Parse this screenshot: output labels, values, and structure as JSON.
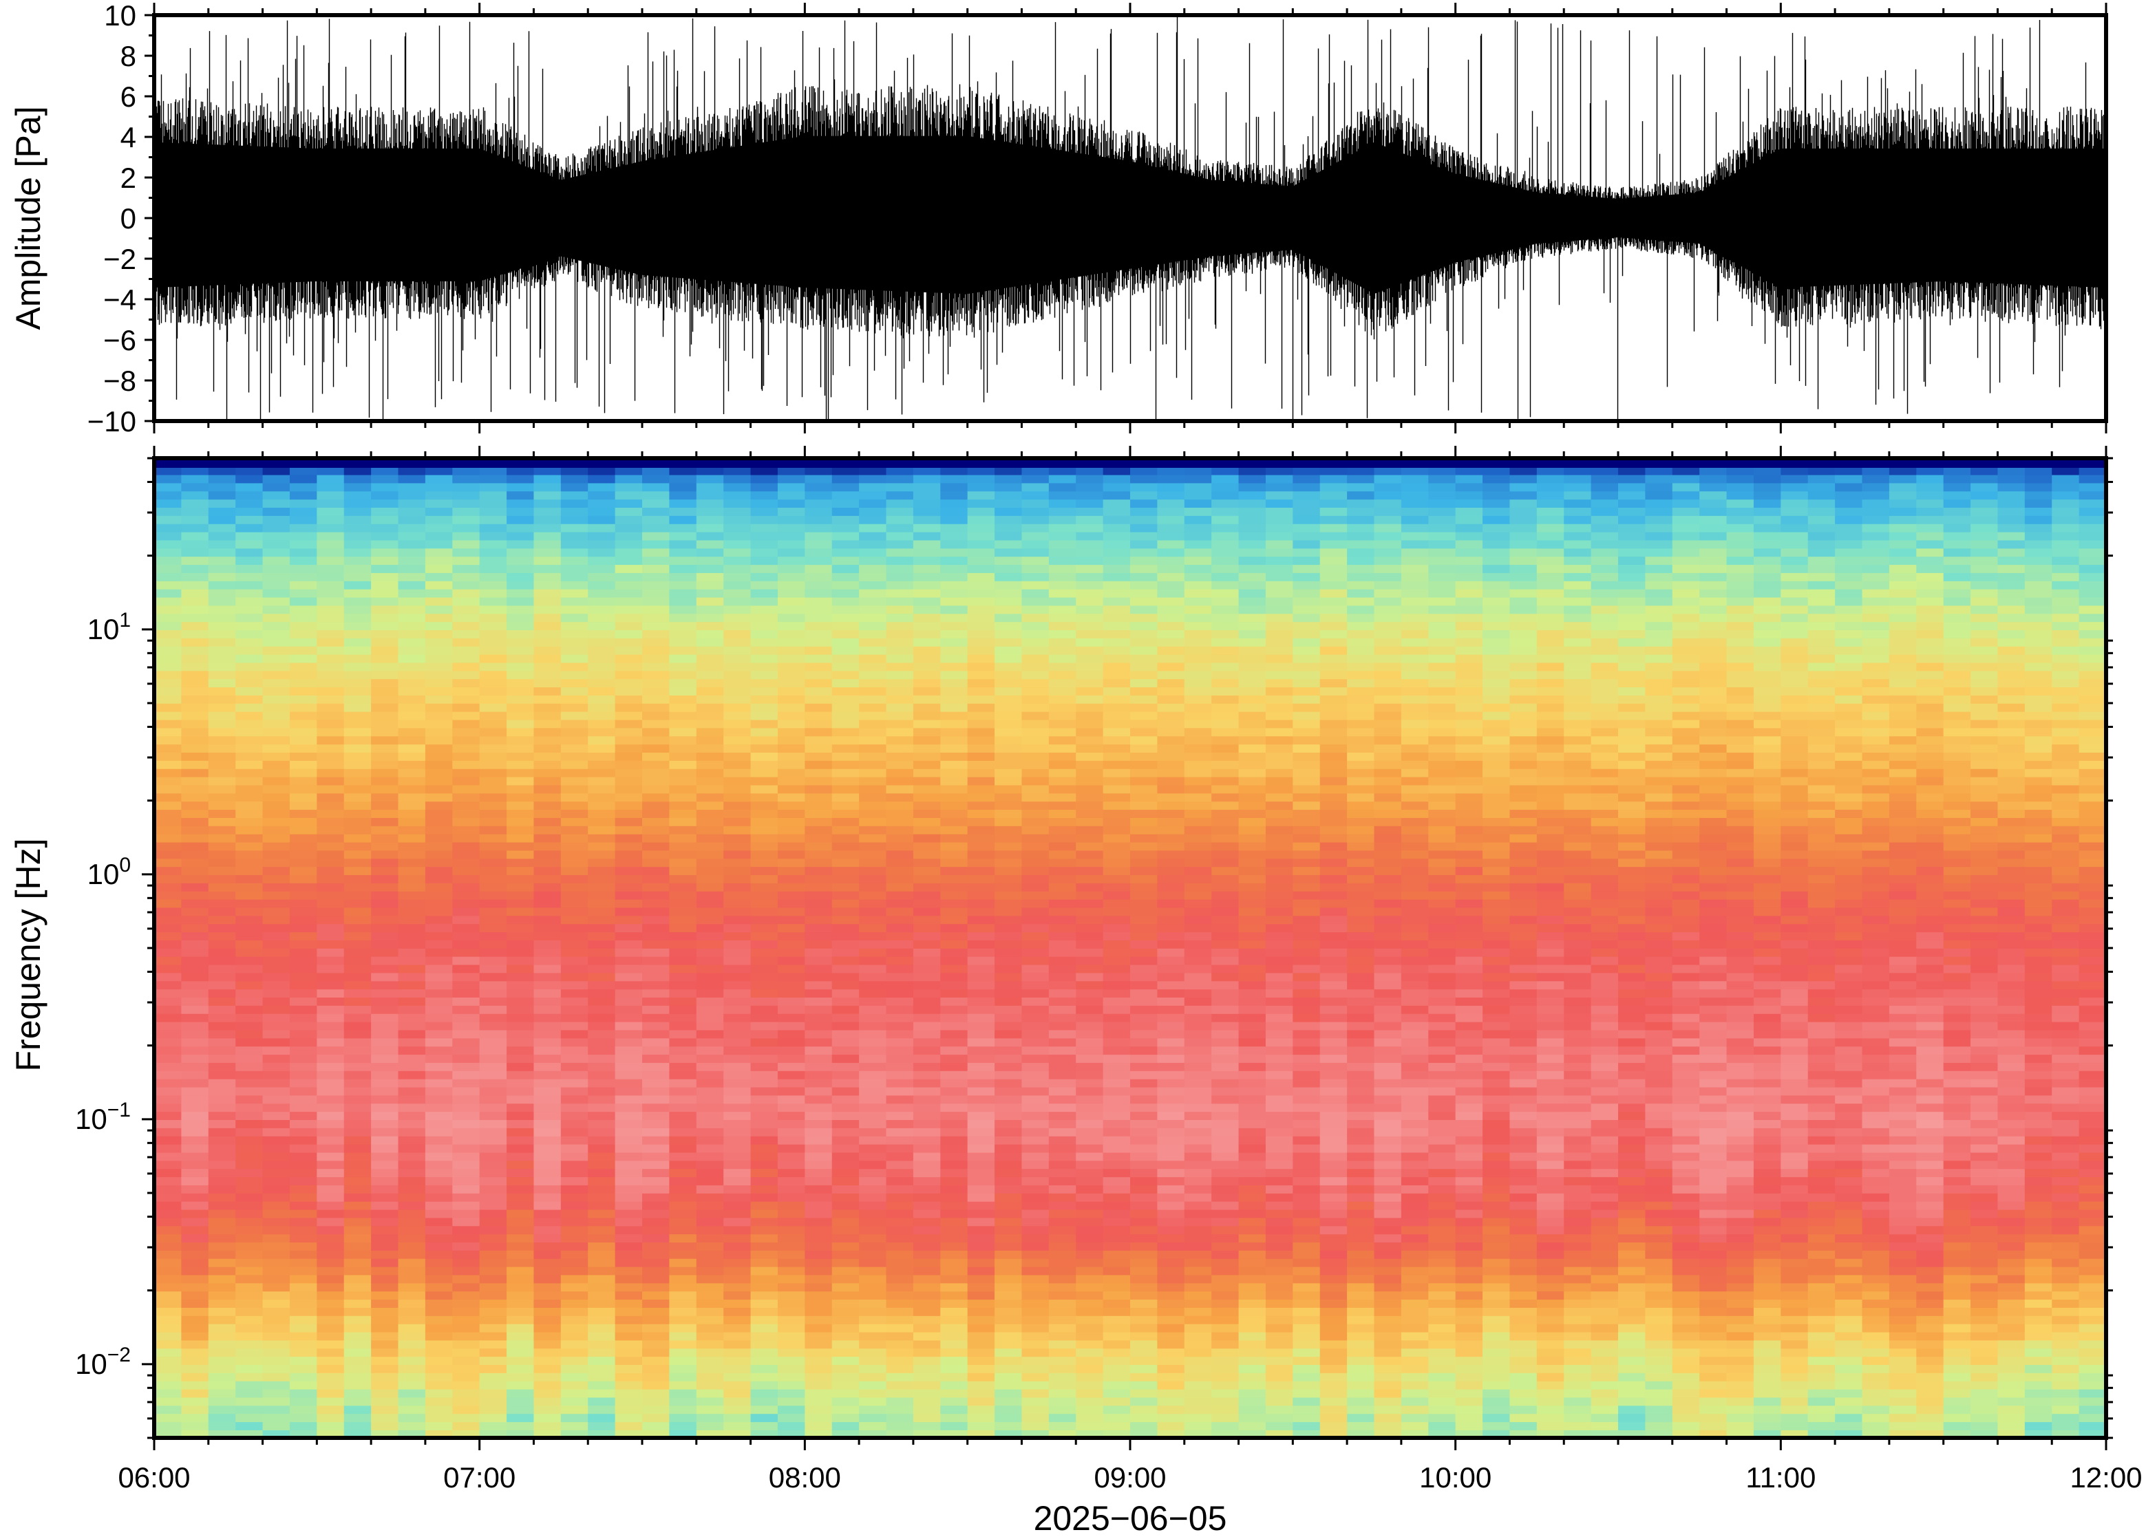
{
  "chart_data": [
    {
      "type": "line",
      "panel": "waveform",
      "ylabel": "Amplitude [Pa]",
      "ylim": [
        -10,
        10
      ],
      "y_ticks": [
        "10",
        "8",
        "6",
        "4",
        "2",
        "0",
        "−2",
        "−4",
        "−6",
        "−8",
        "−10"
      ],
      "y_tick_values": [
        10,
        8,
        6,
        4,
        2,
        0,
        -2,
        -4,
        -6,
        -8,
        -10
      ],
      "xlim": [
        "06:00",
        "12:00"
      ],
      "series": [
        {
          "color": "#000000",
          "x": [
            "06:00",
            "06:30",
            "07:00",
            "07:15",
            "07:30",
            "08:00",
            "08:30",
            "09:00",
            "09:15",
            "09:30",
            "09:45",
            "10:00",
            "10:15",
            "10:30",
            "10:45",
            "11:00",
            "11:30",
            "12:00"
          ],
          "envelope_pos": [
            6.0,
            5.5,
            5.5,
            3.0,
            4.5,
            6.5,
            6.5,
            4.5,
            3.0,
            2.5,
            6.0,
            3.5,
            2.0,
            1.5,
            2.0,
            5.5,
            5.5,
            5.5
          ],
          "envelope_neg": [
            -5.5,
            -5.0,
            -5.0,
            -3.0,
            -4.5,
            -5.5,
            -6.0,
            -4.0,
            -3.0,
            -2.5,
            -6.0,
            -3.5,
            -2.0,
            -1.5,
            -2.0,
            -5.5,
            -5.0,
            -5.5
          ],
          "peak_max": 10,
          "peak_min": -10
        }
      ]
    },
    {
      "type": "heatmap",
      "panel": "spectrogram",
      "ylabel": "Frequency [Hz]",
      "xlabel": "2025−06−05",
      "y_scale": "log",
      "ylim": [
        0.005,
        50
      ],
      "y_tick_values": [
        0.01,
        0.1,
        1,
        10
      ],
      "y_ticks": [
        {
          "base": "10",
          "exp": "−2"
        },
        {
          "base": "10",
          "exp": "−1"
        },
        {
          "base": "10",
          "exp": "0"
        },
        {
          "base": "10",
          "exp": "1"
        }
      ],
      "x_ticks": [
        "06:00",
        "07:00",
        "08:00",
        "09:00",
        "10:00",
        "11:00",
        "12:00"
      ],
      "colormap": [
        "#00007a",
        "#1e64c8",
        "#3cb4e6",
        "#78e0cc",
        "#d2f08c",
        "#fad264",
        "#f7a446",
        "#f07848",
        "#f05a5a",
        "#f58c8c",
        "#f6a0a0"
      ],
      "power_profile": {
        "frequency_hz": [
          50,
          40,
          20,
          10,
          5,
          2,
          1,
          0.5,
          0.2,
          0.1,
          0.05,
          0.03,
          0.02,
          0.01,
          0.006
        ],
        "relative_level": [
          0.0,
          0.18,
          0.32,
          0.42,
          0.5,
          0.6,
          0.72,
          0.8,
          0.85,
          0.88,
          0.82,
          0.74,
          0.62,
          0.46,
          0.38
        ]
      }
    }
  ]
}
